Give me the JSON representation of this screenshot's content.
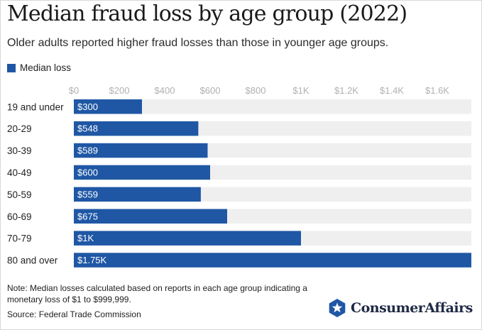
{
  "title": "Median fraud loss by age group (2022)",
  "subtitle": "Older adults reported higher fraud losses than those in younger age groups.",
  "note": "Note: Median losses calculated based on reports in each age group indicating a monetary loss of $1 to $999,999.",
  "source": "Source: Federal Trade Commission",
  "brand": {
    "name": "ConsumerAffairs"
  },
  "colors": {
    "bar": "#1f57a5",
    "track": "#efefef",
    "brand_badge": "#1f57a5"
  },
  "chart_data": {
    "type": "bar",
    "orientation": "horizontal",
    "legend": {
      "position": "top-left",
      "entries": [
        "Median loss"
      ]
    },
    "xlim": [
      0,
      1750
    ],
    "x_ticks": [
      {
        "value": 0,
        "label": "$0"
      },
      {
        "value": 200,
        "label": "$200"
      },
      {
        "value": 400,
        "label": "$400"
      },
      {
        "value": 600,
        "label": "$600"
      },
      {
        "value": 800,
        "label": "$800"
      },
      {
        "value": 1000,
        "label": "$1K"
      },
      {
        "value": 1200,
        "label": "$1.2K"
      },
      {
        "value": 1400,
        "label": "$1.4K"
      },
      {
        "value": 1600,
        "label": "$1.6K"
      }
    ],
    "grid": false,
    "categories": [
      "19 and under",
      "20-29",
      "30-39",
      "40-49",
      "50-59",
      "60-69",
      "70-79",
      "80 and over"
    ],
    "series": [
      {
        "name": "Median loss",
        "values": [
          300,
          548,
          589,
          600,
          559,
          675,
          1000,
          1750
        ],
        "labels": [
          "$300",
          "$548",
          "$589",
          "$600",
          "$559",
          "$675",
          "$1K",
          "$1.75K"
        ]
      }
    ]
  }
}
